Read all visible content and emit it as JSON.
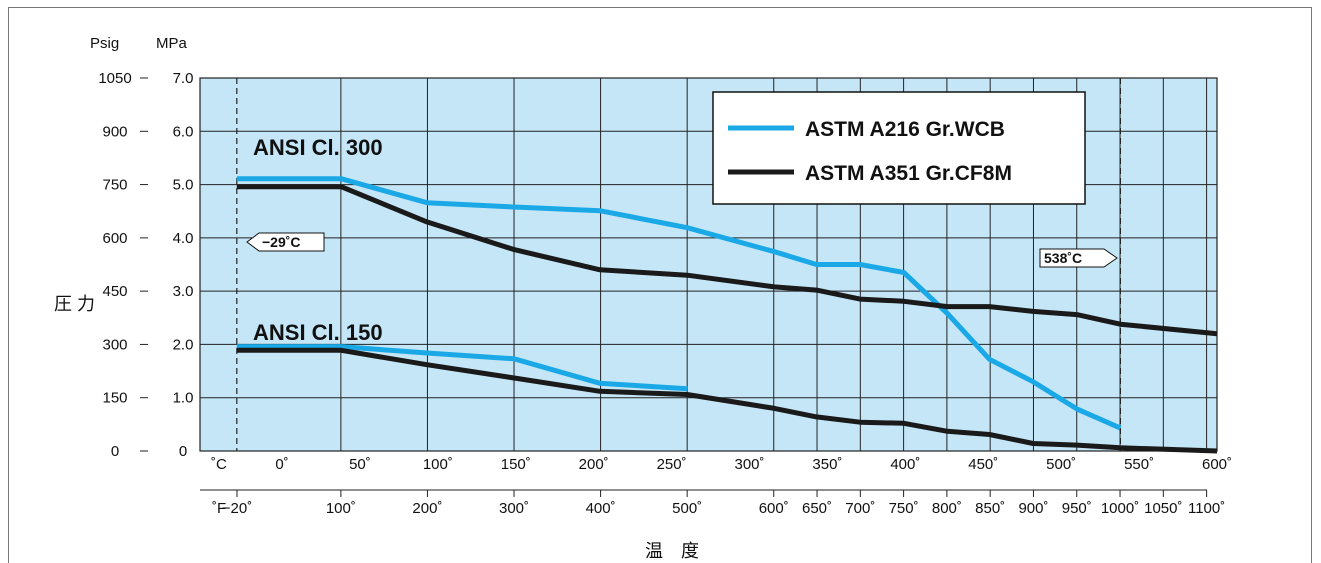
{
  "chart_data": {
    "type": "line",
    "title": "",
    "units": {
      "psig": "Psig",
      "mpa": "MPa",
      "celsius": "˚C",
      "fahrenheit": "˚F"
    },
    "ylabel": "圧 力",
    "xlabel": "温　度",
    "ylim_mpa": [
      0,
      7.0
    ],
    "xlim_celsius": [
      -42,
      600
    ],
    "grid": true,
    "background_color": "#c5e6f7",
    "y_ticks_psig": [
      "0",
      "150",
      "300",
      "450",
      "600",
      "750",
      "900",
      "1050"
    ],
    "y_ticks_mpa": [
      "0",
      "1.0",
      "2.0",
      "3.0",
      "4.0",
      "5.0",
      "6.0",
      "7.0"
    ],
    "x_ticks_celsius": [
      {
        "v": 0,
        "label": "0˚"
      },
      {
        "v": 50,
        "label": "50˚"
      },
      {
        "v": 100,
        "label": "100˚"
      },
      {
        "v": 150,
        "label": "150˚"
      },
      {
        "v": 200,
        "label": "200˚"
      },
      {
        "v": 250,
        "label": "250˚"
      },
      {
        "v": 300,
        "label": "300˚"
      },
      {
        "v": 350,
        "label": "350˚"
      },
      {
        "v": 400,
        "label": "400˚"
      },
      {
        "v": 450,
        "label": "450˚"
      },
      {
        "v": 500,
        "label": "500˚"
      },
      {
        "v": 550,
        "label": "550˚"
      },
      {
        "v": 600,
        "label": "600˚"
      }
    ],
    "x_ticks_fahrenheit": [
      {
        "v": -20,
        "label": "−20˚"
      },
      {
        "v": 100,
        "label": "100˚"
      },
      {
        "v": 200,
        "label": "200˚"
      },
      {
        "v": 300,
        "label": "300˚"
      },
      {
        "v": 400,
        "label": "400˚"
      },
      {
        "v": 500,
        "label": "500˚"
      },
      {
        "v": 600,
        "label": "600˚"
      },
      {
        "v": 650,
        "label": "650˚"
      },
      {
        "v": 700,
        "label": "700˚"
      },
      {
        "v": 750,
        "label": "750˚"
      },
      {
        "v": 800,
        "label": "800˚"
      },
      {
        "v": 850,
        "label": "850˚"
      },
      {
        "v": 900,
        "label": "900˚"
      },
      {
        "v": 950,
        "label": "950˚"
      },
      {
        "v": 1000,
        "label": "1000˚"
      },
      {
        "v": 1050,
        "label": "1050˚"
      },
      {
        "v": 1100,
        "label": "1100˚"
      }
    ],
    "legend": {
      "placement": "top-right",
      "entries": [
        "ASTM A216 Gr.WCB",
        "ASTM A351 Gr.CF8M"
      ]
    },
    "annotations": {
      "class300": "ANSI Cl. 300",
      "class150": "ANSI Cl. 150",
      "min_temp": "−29˚C",
      "max_temp": "538˚C",
      "min_temp_c": -29,
      "max_temp_c": 538
    },
    "series": [
      {
        "name": "ASTM A216 Gr.WCB",
        "group": "ANSI Cl. 300",
        "color": "#1aa9e6",
        "x": [
          -29,
          38,
          93,
          149,
          204,
          260,
          316,
          343,
          371,
          399,
          427,
          454,
          482,
          510,
          538
        ],
        "y": [
          5.11,
          5.11,
          4.66,
          4.58,
          4.51,
          4.19,
          3.74,
          3.5,
          3.5,
          3.35,
          2.58,
          1.72,
          1.3,
          0.79,
          0.43
        ]
      },
      {
        "name": "ASTM A351 Gr.CF8M",
        "group": "ANSI Cl. 300",
        "color": "#1a1a1a",
        "x": [
          -29,
          38,
          93,
          149,
          204,
          260,
          316,
          343,
          371,
          399,
          427,
          454,
          482,
          510,
          538,
          600
        ],
        "y": [
          4.96,
          4.96,
          4.3,
          3.78,
          3.4,
          3.3,
          3.08,
          3.02,
          2.85,
          2.81,
          2.71,
          2.71,
          2.62,
          2.56,
          2.38,
          2.2
        ]
      },
      {
        "name": "ASTM A216 Gr.WCB",
        "group": "ANSI Cl. 150",
        "color": "#1aa9e6",
        "x": [
          -29,
          38,
          93,
          149,
          204,
          260
        ],
        "y": [
          1.96,
          1.96,
          1.84,
          1.73,
          1.27,
          1.17
        ]
      },
      {
        "name": "ASTM A351 Gr.CF8M",
        "group": "ANSI Cl. 150",
        "color": "#1a1a1a",
        "x": [
          -29,
          38,
          93,
          149,
          204,
          260,
          316,
          343,
          371,
          399,
          427,
          454,
          482,
          510,
          538,
          600
        ],
        "y": [
          1.89,
          1.89,
          1.62,
          1.37,
          1.12,
          1.06,
          0.8,
          0.64,
          0.54,
          0.52,
          0.37,
          0.31,
          0.14,
          0.11,
          0.06,
          0.0
        ]
      }
    ]
  }
}
